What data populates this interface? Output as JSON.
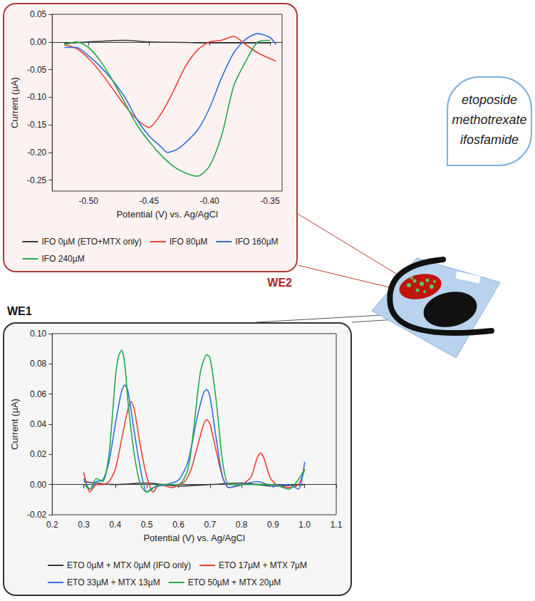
{
  "chart_data": [
    {
      "type": "line",
      "title": "WE2",
      "x_label": "Potential (V) vs. Ag/AgCl",
      "y_label": "Current (µA)",
      "xlim": [
        -0.53,
        -0.34
      ],
      "xticks": [
        {
          "value": -0.5,
          "label": "-0.50"
        },
        -0.45,
        {
          "value": -0.4,
          "label": "-0.40"
        },
        -0.35
      ],
      "ylim": [
        -0.27,
        0.05
      ],
      "yticks": [
        -0.25,
        {
          "value": -0.2,
          "label": "-0.20"
        },
        -0.15,
        {
          "value": -0.1,
          "label": "-0.10"
        },
        -0.05,
        {
          "value": 0,
          "label": "0.00"
        },
        0.05
      ],
      "grid": false,
      "legend": "bottom",
      "marker": "none",
      "series": [
        {
          "name": "IFO 0µM (ETO+MTX only)",
          "color": "#3a3a3a",
          "x": [
            -0.52,
            -0.5,
            -0.47,
            -0.45,
            -0.42,
            -0.4,
            -0.37,
            -0.35
          ],
          "values": [
            -0.003,
            0.0,
            0.003,
            0.0,
            -0.001,
            -0.002,
            -0.002,
            -0.002
          ]
        },
        {
          "name": "IFO 80µM",
          "color": "#ee4036",
          "x": [
            -0.52,
            -0.51,
            -0.5,
            -0.49,
            -0.48,
            -0.47,
            -0.46,
            -0.45,
            -0.44,
            -0.43,
            -0.42,
            -0.41,
            -0.4,
            -0.39,
            -0.38,
            -0.37,
            -0.36,
            -0.345
          ],
          "values": [
            -0.005,
            -0.012,
            -0.03,
            -0.055,
            -0.085,
            -0.115,
            -0.14,
            -0.155,
            -0.13,
            -0.09,
            -0.045,
            -0.015,
            0.0,
            0.003,
            0.01,
            -0.005,
            -0.02,
            -0.035
          ]
        },
        {
          "name": "IFO 160µM",
          "color": "#2f6fde",
          "x": [
            -0.52,
            -0.51,
            -0.5,
            -0.49,
            -0.48,
            -0.47,
            -0.46,
            -0.45,
            -0.44,
            -0.435,
            -0.425,
            -0.41,
            -0.4,
            -0.39,
            -0.38,
            -0.37,
            -0.36,
            -0.35,
            -0.345
          ],
          "values": [
            -0.01,
            -0.01,
            -0.025,
            -0.045,
            -0.07,
            -0.1,
            -0.14,
            -0.17,
            -0.19,
            -0.2,
            -0.192,
            -0.16,
            -0.12,
            -0.065,
            -0.02,
            0.005,
            0.015,
            0.008,
            -0.005
          ]
        },
        {
          "name": "IFO 240µM",
          "color": "#22a94a",
          "x": [
            -0.52,
            -0.51,
            -0.5,
            -0.49,
            -0.48,
            -0.47,
            -0.46,
            -0.45,
            -0.44,
            -0.43,
            -0.42,
            -0.41,
            -0.4,
            -0.39,
            -0.38,
            -0.37,
            -0.36,
            -0.35
          ],
          "values": [
            -0.005,
            0.0,
            -0.01,
            -0.035,
            -0.07,
            -0.11,
            -0.15,
            -0.18,
            -0.205,
            -0.225,
            -0.237,
            -0.243,
            -0.225,
            -0.17,
            -0.08,
            -0.035,
            0.0,
            0.003
          ]
        }
      ]
    },
    {
      "type": "line",
      "title": "WE1",
      "x_label": "Potential (V) vs. Ag/AgCl",
      "y_label": "Current (µA)",
      "xlim": [
        0.2,
        1.1
      ],
      "xticks": [
        0.2,
        0.3,
        0.4,
        0.5,
        0.6,
        0.7,
        0.8,
        0.9,
        {
          "value": 1,
          "label": "1.0"
        },
        1.1
      ],
      "ylim": [
        -0.02,
        0.1
      ],
      "yticks": [
        -0.02,
        {
          "value": 0,
          "label": "0.00"
        },
        0.02,
        0.04,
        0.06,
        0.08,
        {
          "value": 0.1,
          "label": "0.10"
        }
      ],
      "grid": false,
      "legend": "bottom",
      "marker": "none",
      "series": [
        {
          "name": "ETO 0µM + MTX 0µM (IFO only)",
          "color": "#3a3a3a",
          "x": [
            0.3,
            0.4,
            0.5,
            0.6,
            0.7,
            0.8,
            0.9,
            1.0
          ],
          "values": [
            0.002,
            0.0,
            0.001,
            -0.001,
            0.0,
            0.001,
            -0.001,
            0.0
          ]
        },
        {
          "name": "ETO 17µM + MTX 7µM",
          "color": "#ee4036",
          "x": [
            0.3,
            0.32,
            0.34,
            0.36,
            0.38,
            0.4,
            0.42,
            0.44,
            0.45,
            0.46,
            0.48,
            0.5,
            0.52,
            0.54,
            0.58,
            0.62,
            0.64,
            0.66,
            0.68,
            0.69,
            0.7,
            0.72,
            0.74,
            0.76,
            0.8,
            0.83,
            0.85,
            0.86,
            0.87,
            0.89,
            0.91,
            0.95,
            0.98,
            1.0
          ],
          "values": [
            0.008,
            -0.005,
            0.0,
            0.0,
            0.002,
            0.01,
            0.03,
            0.05,
            0.055,
            0.05,
            0.025,
            0.005,
            -0.005,
            0.0,
            -0.002,
            0.002,
            0.01,
            0.025,
            0.04,
            0.043,
            0.04,
            0.022,
            0.005,
            -0.002,
            0.0,
            0.005,
            0.018,
            0.021,
            0.018,
            0.005,
            0.0,
            -0.002,
            0.0,
            0.01
          ]
        },
        {
          "name": "ETO 33µM + MTX 13µM",
          "color": "#2f6fde",
          "x": [
            0.3,
            0.32,
            0.34,
            0.36,
            0.38,
            0.4,
            0.42,
            0.43,
            0.44,
            0.46,
            0.48,
            0.5,
            0.52,
            0.56,
            0.6,
            0.63,
            0.66,
            0.68,
            0.69,
            0.7,
            0.72,
            0.74,
            0.76,
            0.8,
            0.85,
            0.9,
            0.95,
            0.98,
            1.0
          ],
          "values": [
            0.004,
            -0.003,
            0.002,
            0.003,
            0.015,
            0.04,
            0.062,
            0.066,
            0.062,
            0.035,
            0.01,
            -0.005,
            -0.002,
            0.0,
            0.003,
            0.015,
            0.045,
            0.061,
            0.063,
            0.058,
            0.03,
            0.005,
            -0.002,
            0.0,
            0.002,
            -0.001,
            0.0,
            -0.003,
            0.015
          ]
        },
        {
          "name": "ETO 50µM + MTX 20µM",
          "color": "#22a94a",
          "x": [
            0.3,
            0.32,
            0.34,
            0.36,
            0.38,
            0.4,
            0.41,
            0.42,
            0.43,
            0.44,
            0.46,
            0.48,
            0.5,
            0.54,
            0.6,
            0.63,
            0.65,
            0.67,
            0.69,
            0.7,
            0.72,
            0.74,
            0.76,
            0.8,
            0.85,
            0.9,
            0.95,
            1.0
          ],
          "values": [
            0.0,
            -0.003,
            0.004,
            0.002,
            0.02,
            0.07,
            0.085,
            0.089,
            0.08,
            0.055,
            0.02,
            0.0,
            -0.005,
            0.0,
            0.0,
            0.01,
            0.04,
            0.075,
            0.086,
            0.084,
            0.055,
            0.015,
            0.0,
            0.0,
            0.0,
            0.0,
            -0.003,
            0.01
          ]
        }
      ]
    }
  ],
  "diagram": {
    "drugs": [
      "etoposide",
      "methotrexate",
      "ifosfamide"
    ]
  }
}
